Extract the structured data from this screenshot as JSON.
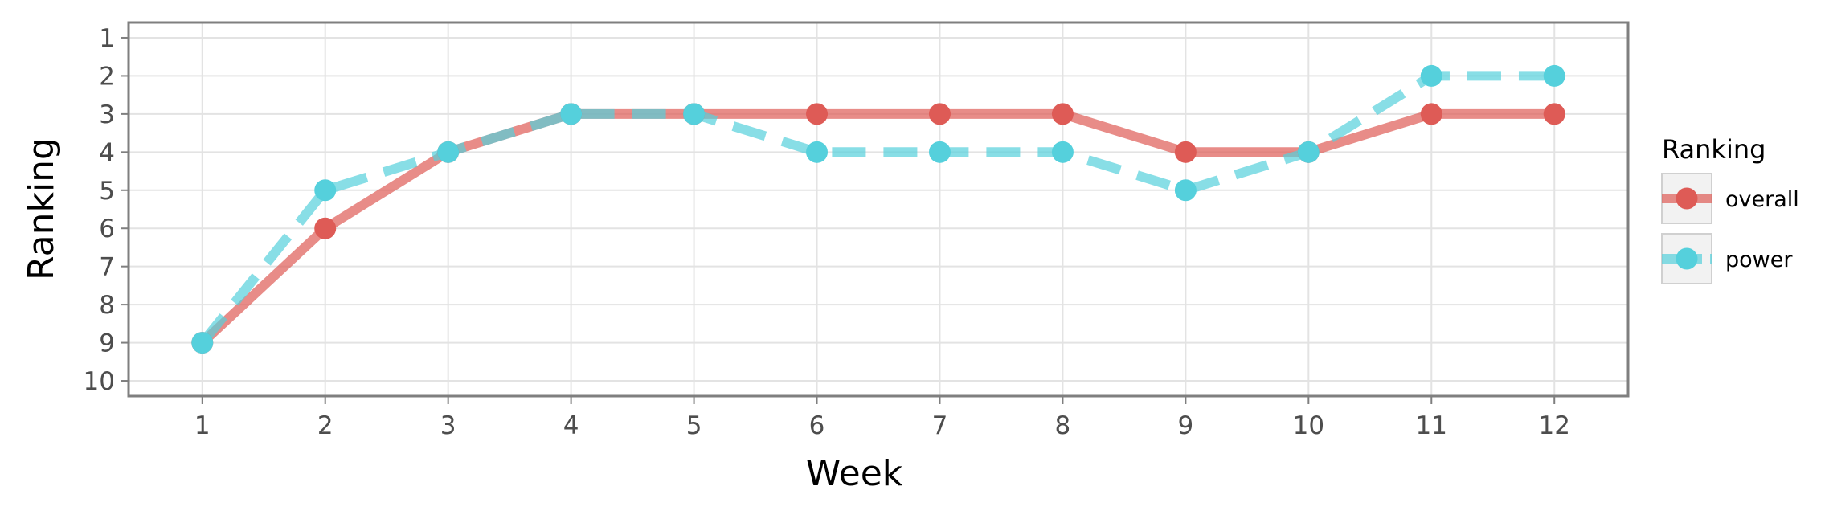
{
  "chart_data": {
    "type": "line",
    "title": "",
    "xlabel": "Week",
    "ylabel": "Ranking",
    "x": [
      1,
      2,
      3,
      4,
      5,
      6,
      7,
      8,
      9,
      10,
      11,
      12
    ],
    "x_ticks": [
      "1",
      "2",
      "3",
      "4",
      "5",
      "6",
      "7",
      "8",
      "9",
      "10",
      "11",
      "12"
    ],
    "y_ticks": [
      "1",
      "2",
      "3",
      "4",
      "5",
      "6",
      "7",
      "8",
      "9",
      "10"
    ],
    "xlim": [
      0.4,
      12.6
    ],
    "ylim": [
      10.4,
      0.6
    ],
    "y_reversed": true,
    "grid": true,
    "legend": {
      "title": "Ranking",
      "position": "right"
    },
    "series": [
      {
        "name": "overall",
        "values": [
          9,
          6,
          4,
          3,
          3,
          3,
          3,
          3,
          4,
          4,
          3,
          3
        ],
        "color": "#de5b56",
        "line_style": "solid"
      },
      {
        "name": "power",
        "values": [
          9,
          5,
          4,
          3,
          3,
          4,
          4,
          4,
          5,
          4,
          2,
          2
        ],
        "color": "#55d0dc",
        "line_style": "dashed"
      }
    ]
  }
}
